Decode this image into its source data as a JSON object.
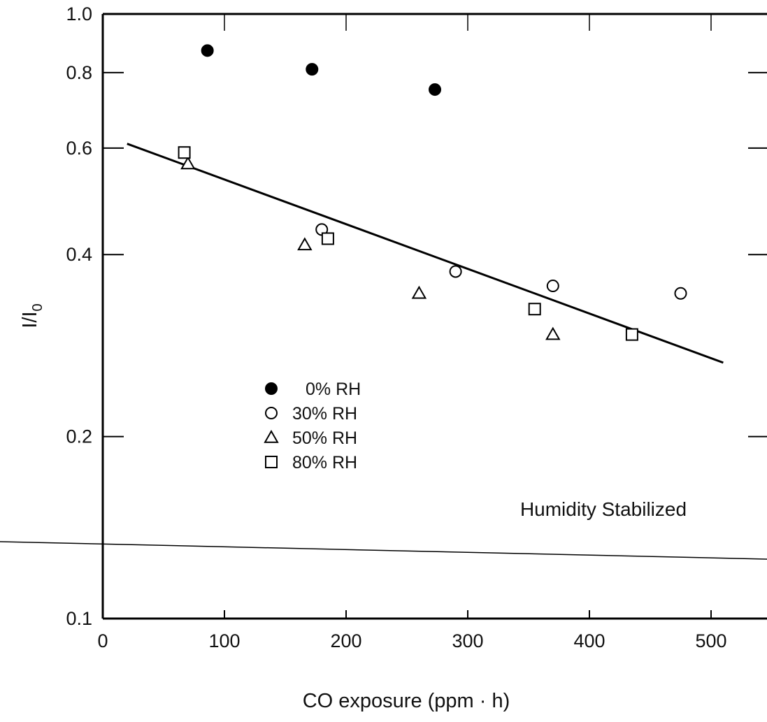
{
  "chart_data": {
    "type": "scatter",
    "xlabel": "CO exposure (ppm · h)",
    "ylabel": "I/I",
    "ylabel_subscript": "0",
    "y_scale": "log",
    "xlim": [
      0,
      550
    ],
    "ylim": [
      0.1,
      1.0
    ],
    "x_ticks": [
      "0",
      "100",
      "200",
      "300",
      "400",
      "500"
    ],
    "y_ticks": [
      "0.1",
      "0.2",
      "0.4",
      "0.6",
      "0.8",
      "1.0"
    ],
    "grid": false,
    "legend_position": "center-left",
    "annotation": "Humidity Stabilized",
    "series": [
      {
        "name": "0% RH",
        "marker": "filled-circle",
        "points": [
          [
            86,
            0.87
          ],
          [
            172,
            0.81
          ],
          [
            273,
            0.75
          ]
        ]
      },
      {
        "name": "30% RH",
        "marker": "open-circle",
        "points": [
          [
            180,
            0.44
          ],
          [
            290,
            0.375
          ],
          [
            370,
            0.355
          ],
          [
            475,
            0.345
          ]
        ]
      },
      {
        "name": "50% RH",
        "marker": "open-triangle",
        "points": [
          [
            70,
            0.565
          ],
          [
            166,
            0.415
          ],
          [
            260,
            0.345
          ],
          [
            370,
            0.295
          ]
        ]
      },
      {
        "name": "80% RH",
        "marker": "open-square",
        "points": [
          [
            67,
            0.59
          ],
          [
            185,
            0.425
          ],
          [
            355,
            0.325
          ],
          [
            435,
            0.295
          ]
        ]
      }
    ],
    "fit_line": {
      "points": [
        [
          20,
          0.61
        ],
        [
          510,
          0.265
        ]
      ]
    }
  }
}
